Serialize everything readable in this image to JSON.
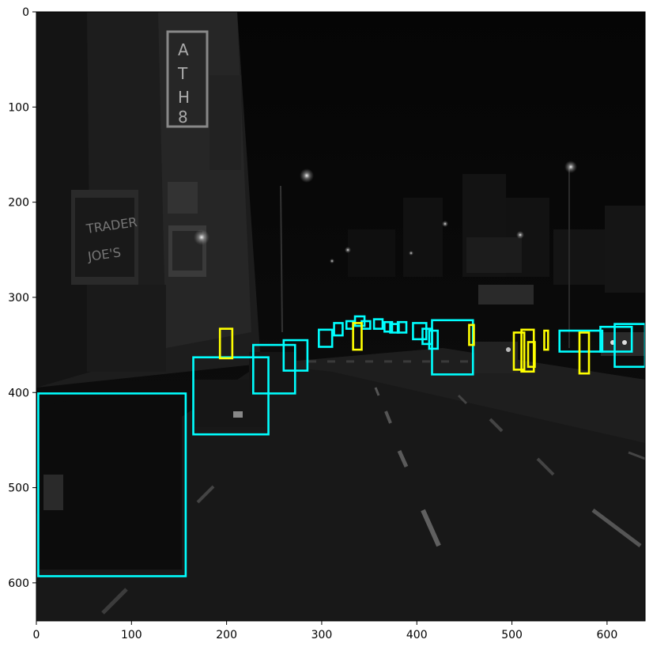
{
  "image": {
    "description_tags": [
      "night-street",
      "grayscale-photo",
      "bounding-box-overlay"
    ],
    "colors": {
      "class_a": "#00ffff",
      "class_b": "#ffff00",
      "frame": "#000000"
    }
  },
  "axes": {
    "x_ticks": [
      "0",
      "100",
      "200",
      "300",
      "400",
      "500",
      "600"
    ],
    "y_ticks": [
      "0",
      "100",
      "200",
      "300",
      "400",
      "500",
      "600"
    ],
    "x_range": [
      0,
      640
    ],
    "y_range": [
      0,
      640
    ]
  },
  "detections": [
    {
      "cls": "class_a",
      "x1": 2,
      "y1": 401,
      "x2": 157,
      "y2": 593
    },
    {
      "cls": "class_a",
      "x1": 165,
      "y1": 363,
      "x2": 244,
      "y2": 444
    },
    {
      "cls": "class_a",
      "x1": 228,
      "y1": 350,
      "x2": 272,
      "y2": 401
    },
    {
      "cls": "class_a",
      "x1": 260,
      "y1": 345,
      "x2": 285,
      "y2": 377
    },
    {
      "cls": "class_a",
      "x1": 297,
      "y1": 334,
      "x2": 311,
      "y2": 352
    },
    {
      "cls": "class_a",
      "x1": 313,
      "y1": 327,
      "x2": 322,
      "y2": 340
    },
    {
      "cls": "class_a",
      "x1": 326,
      "y1": 325,
      "x2": 333,
      "y2": 333
    },
    {
      "cls": "class_a",
      "x1": 335,
      "y1": 320,
      "x2": 345,
      "y2": 330
    },
    {
      "cls": "class_a",
      "x1": 342,
      "y1": 325,
      "x2": 351,
      "y2": 333
    },
    {
      "cls": "class_a",
      "x1": 355,
      "y1": 323,
      "x2": 364,
      "y2": 333
    },
    {
      "cls": "class_a",
      "x1": 366,
      "y1": 326,
      "x2": 374,
      "y2": 336
    },
    {
      "cls": "class_a",
      "x1": 372,
      "y1": 328,
      "x2": 381,
      "y2": 337
    },
    {
      "cls": "class_a",
      "x1": 380,
      "y1": 326,
      "x2": 389,
      "y2": 337
    },
    {
      "cls": "class_a",
      "x1": 396,
      "y1": 327,
      "x2": 410,
      "y2": 344
    },
    {
      "cls": "class_a",
      "x1": 406,
      "y1": 333,
      "x2": 416,
      "y2": 349
    },
    {
      "cls": "class_a",
      "x1": 413,
      "y1": 335,
      "x2": 422,
      "y2": 354
    },
    {
      "cls": "class_a",
      "x1": 416,
      "y1": 324,
      "x2": 459,
      "y2": 381
    },
    {
      "cls": "class_a",
      "x1": 550,
      "y1": 335,
      "x2": 595,
      "y2": 357
    },
    {
      "cls": "class_a",
      "x1": 593,
      "y1": 331,
      "x2": 626,
      "y2": 357
    },
    {
      "cls": "class_a",
      "x1": 608,
      "y1": 328,
      "x2": 640,
      "y2": 373
    },
    {
      "cls": "class_b",
      "x1": 193,
      "y1": 333,
      "x2": 206,
      "y2": 364
    },
    {
      "cls": "class_b",
      "x1": 333,
      "y1": 327,
      "x2": 342,
      "y2": 355
    },
    {
      "cls": "class_b",
      "x1": 455,
      "y1": 329,
      "x2": 460,
      "y2": 350
    },
    {
      "cls": "class_b",
      "x1": 502,
      "y1": 337,
      "x2": 513,
      "y2": 376
    },
    {
      "cls": "class_b",
      "x1": 510,
      "y1": 334,
      "x2": 523,
      "y2": 378
    },
    {
      "cls": "class_b",
      "x1": 517,
      "y1": 347,
      "x2": 524,
      "y2": 373
    },
    {
      "cls": "class_b",
      "x1": 534,
      "y1": 335,
      "x2": 538,
      "y2": 355
    },
    {
      "cls": "class_b",
      "x1": 571,
      "y1": 337,
      "x2": 581,
      "y2": 380
    }
  ]
}
